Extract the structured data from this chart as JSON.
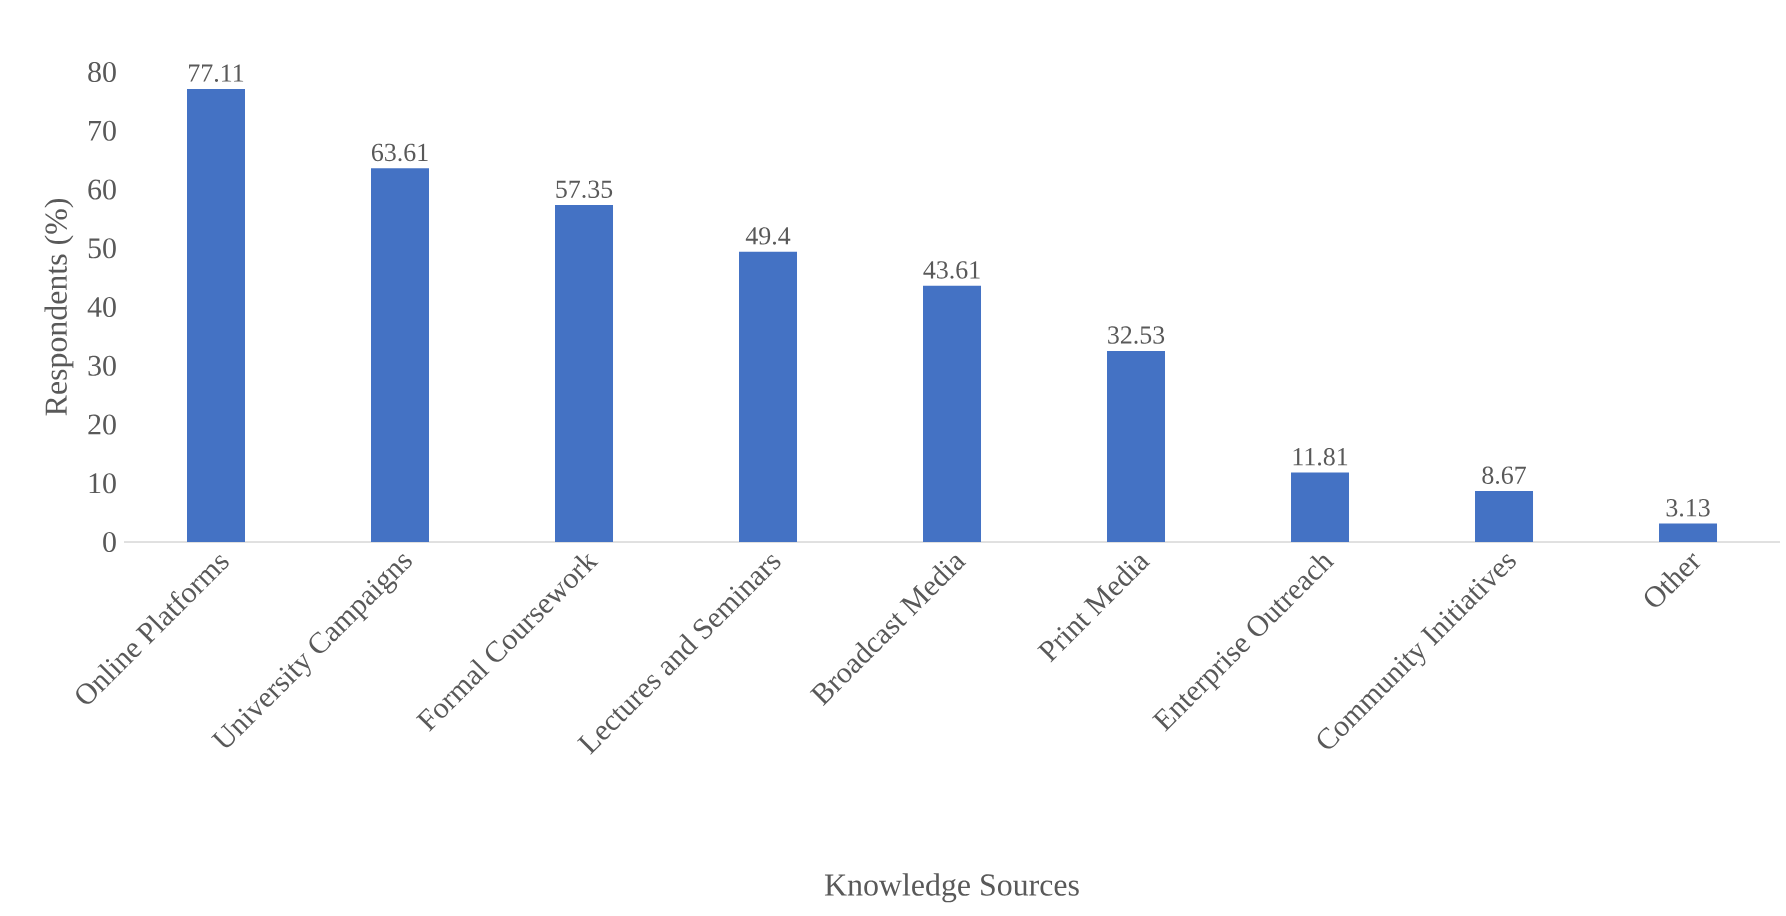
{
  "chart_data": {
    "type": "bar",
    "xlabel": "Knowledge Sources",
    "ylabel": "Respondents (%)",
    "categories": [
      "Online Platforms",
      "University Campaigns",
      "Formal Coursework",
      "Lectures and Seminars",
      "Broadcast Media",
      "Print Media",
      "Enterprise Outreach",
      "Community Initiatives",
      "Other"
    ],
    "values": [
      77.11,
      63.61,
      57.35,
      49.4,
      43.61,
      32.53,
      11.81,
      8.67,
      3.13
    ],
    "color": "#4472c4",
    "ylim": [
      0,
      80
    ],
    "yticks": [
      0,
      10,
      20,
      30,
      40,
      50,
      60,
      70,
      80
    ],
    "grid": false,
    "data_labels": true
  }
}
